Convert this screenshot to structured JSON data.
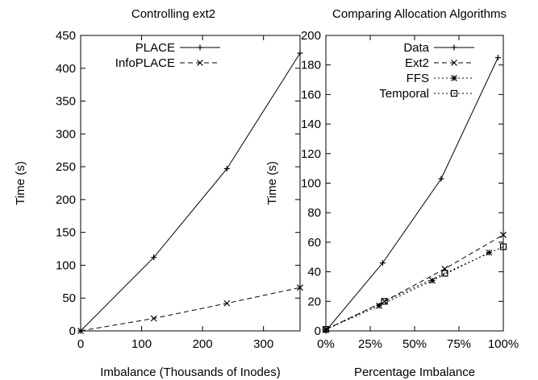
{
  "chart_data": [
    {
      "type": "line",
      "title": "Controlling ext2",
      "xlabel": "Imbalance (Thousands of Inodes)",
      "ylabel": "Time (s)",
      "xlim": [
        0,
        360
      ],
      "ylim": [
        0,
        450
      ],
      "xticks": [
        0,
        100,
        200,
        300
      ],
      "xtick_labels": [
        "0",
        "100",
        "200",
        "300"
      ],
      "yticks": [
        0,
        50,
        100,
        150,
        200,
        250,
        300,
        350,
        400,
        450
      ],
      "ytick_labels": [
        "0",
        "50",
        "100",
        "150",
        "200",
        "250",
        "300",
        "350",
        "400",
        "450"
      ],
      "legend_position": "top-left",
      "series": [
        {
          "name": "PLACE",
          "style": "solid",
          "marker": "plus",
          "x": [
            0,
            120,
            240,
            360
          ],
          "y": [
            0,
            112,
            247,
            423
          ]
        },
        {
          "name": "InfoPLACE",
          "style": "dashed",
          "marker": "x",
          "x": [
            0,
            120,
            240,
            360
          ],
          "y": [
            0,
            19,
            42,
            66
          ]
        }
      ]
    },
    {
      "type": "line",
      "title": "Comparing Allocation Algorithms",
      "xlabel": "Percentage Imbalance",
      "ylabel": "Time (s)",
      "xlim": [
        0,
        100
      ],
      "ylim": [
        0,
        200
      ],
      "xticks": [
        0,
        25,
        50,
        75,
        100
      ],
      "xtick_labels": [
        "0%",
        "25%",
        "50%",
        "75%",
        "100%"
      ],
      "yticks": [
        0,
        20,
        40,
        60,
        80,
        100,
        120,
        140,
        160,
        180,
        200
      ],
      "ytick_labels": [
        "0",
        "20",
        "40",
        "60",
        "80",
        "100",
        "120",
        "140",
        "160",
        "180",
        "200"
      ],
      "legend_position": "top-left",
      "series": [
        {
          "name": "Data",
          "style": "solid",
          "marker": "plus",
          "x": [
            0,
            32,
            65,
            97
          ],
          "y": [
            0,
            46,
            103,
            185
          ]
        },
        {
          "name": "Ext2",
          "style": "dashed",
          "marker": "x",
          "x": [
            0,
            33,
            67,
            100
          ],
          "y": [
            1,
            20,
            42,
            65
          ]
        },
        {
          "name": "FFS",
          "style": "dotted",
          "marker": "star",
          "x": [
            0,
            30,
            60,
            92
          ],
          "y": [
            1,
            17,
            34,
            53
          ]
        },
        {
          "name": "Temporal",
          "style": "dotted",
          "marker": "box",
          "x": [
            0,
            33,
            67,
            100
          ],
          "y": [
            1,
            20,
            39,
            57
          ]
        }
      ]
    }
  ]
}
